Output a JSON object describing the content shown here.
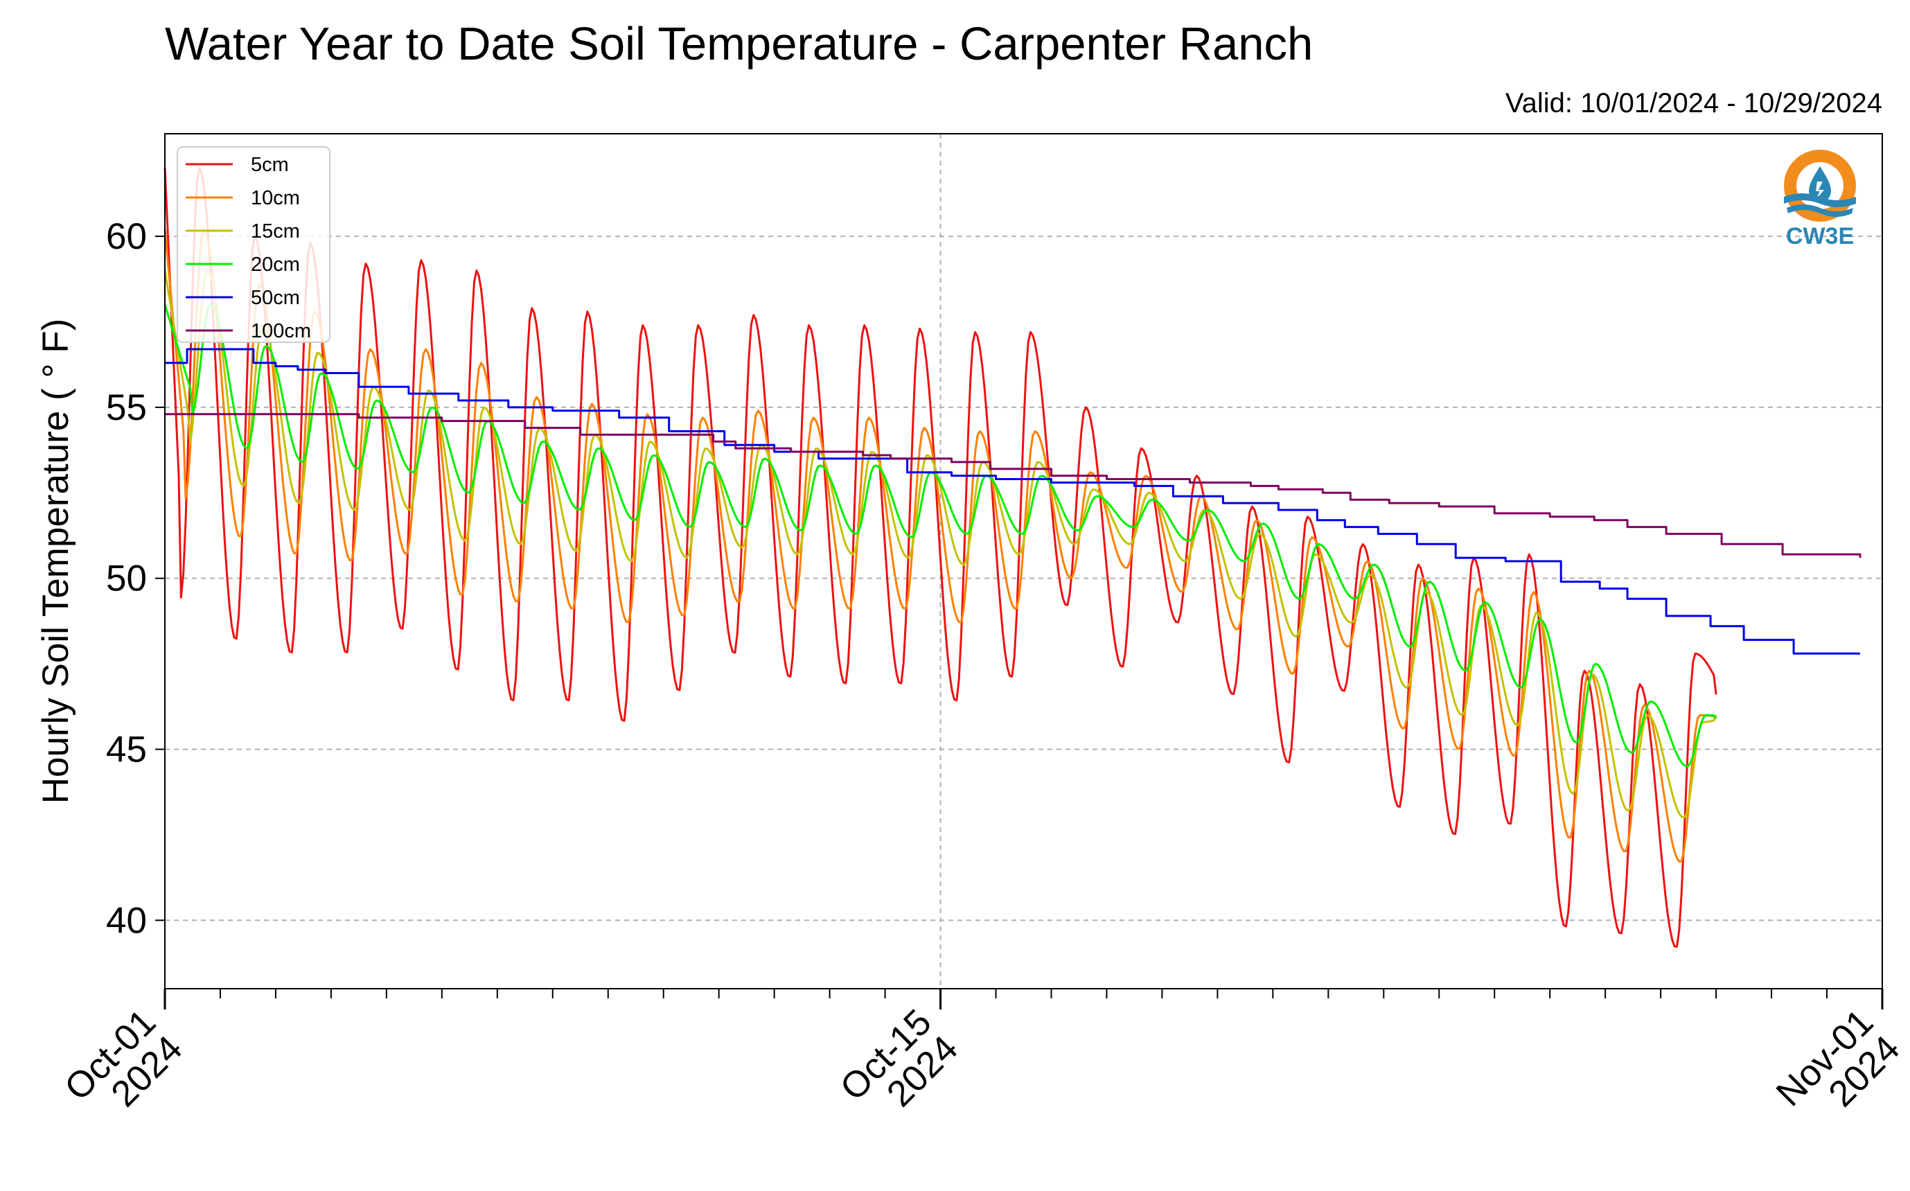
{
  "chart_data": {
    "type": "line",
    "title": "Water Year to Date Soil Temperature - Carpenter Ranch",
    "subtitle": "Valid: 10/01/2024 - 10/29/2024",
    "ylabel": "Hourly Soil Temperature ( ° F)",
    "xlabel": "",
    "ylim": [
      38,
      63
    ],
    "xlim": [
      "2024-10-01",
      "2024-11-01"
    ],
    "x_ticks": [
      {
        "date": "2024-10-01",
        "line1": "Oct-01",
        "line2": "2024"
      },
      {
        "date": "2024-10-15",
        "line1": "Oct-15",
        "line2": "2024"
      },
      {
        "date": "2024-11-01",
        "line1": "Nov-01",
        "line2": "2024"
      }
    ],
    "y_ticks": [
      40,
      45,
      50,
      55,
      60
    ],
    "grid": true,
    "legend_position": "top-left",
    "logo": {
      "text": "CW3E",
      "position": "top-right"
    },
    "daily_dates": [
      "2024-10-01",
      "2024-10-02",
      "2024-10-03",
      "2024-10-04",
      "2024-10-05",
      "2024-10-06",
      "2024-10-07",
      "2024-10-08",
      "2024-10-09",
      "2024-10-10",
      "2024-10-11",
      "2024-10-12",
      "2024-10-13",
      "2024-10-14",
      "2024-10-15",
      "2024-10-16",
      "2024-10-17",
      "2024-10-18",
      "2024-10-19",
      "2024-10-20",
      "2024-10-21",
      "2024-10-22",
      "2024-10-23",
      "2024-10-24",
      "2024-10-25",
      "2024-10-26",
      "2024-10-27",
      "2024-10-28"
    ],
    "series": [
      {
        "name": "5cm",
        "color": "#ee1111",
        "phase": 0.0,
        "daily_max": [
          62.0,
          60.0,
          59.8,
          59.2,
          59.3,
          59.0,
          57.9,
          57.8,
          57.4,
          57.4,
          57.7,
          57.4,
          57.4,
          57.3,
          57.2,
          57.2,
          55.0,
          53.8,
          53.0,
          52.1,
          51.8,
          51.0,
          50.4,
          50.6,
          50.7,
          47.3,
          46.9,
          47.8
        ],
        "daily_min": [
          49.4,
          48.2,
          47.8,
          47.8,
          48.5,
          47.3,
          46.4,
          46.4,
          45.8,
          46.7,
          47.8,
          47.1,
          46.9,
          46.9,
          46.4,
          47.1,
          49.2,
          47.4,
          48.7,
          46.6,
          44.6,
          46.7,
          43.3,
          42.5,
          42.8,
          39.8,
          39.6,
          39.2
        ],
        "end_value": 46.6
      },
      {
        "name": "10cm",
        "color": "#ff8000",
        "phase": 0.08,
        "daily_max": [
          60.2,
          58.6,
          57.8,
          56.7,
          56.7,
          56.3,
          55.3,
          55.1,
          54.8,
          54.7,
          54.9,
          54.7,
          54.7,
          54.4,
          54.3,
          54.3,
          53.1,
          53.0,
          52.4,
          51.7,
          51.2,
          50.5,
          50.0,
          49.7,
          49.6,
          47.3,
          46.3,
          46.0
        ],
        "daily_min": [
          52.3,
          51.2,
          50.7,
          50.5,
          50.7,
          49.5,
          49.3,
          49.1,
          48.7,
          48.9,
          49.3,
          49.1,
          49.1,
          49.1,
          48.7,
          49.1,
          50.0,
          50.3,
          49.6,
          48.5,
          47.2,
          48.0,
          45.6,
          45.0,
          44.8,
          42.4,
          42.0,
          41.7
        ],
        "end_value": 45.9
      },
      {
        "name": "15cm",
        "color": "#c2c200",
        "phase": 0.14,
        "daily_max": [
          59.0,
          57.4,
          56.6,
          55.6,
          55.5,
          55.0,
          54.4,
          54.2,
          54.0,
          53.8,
          53.9,
          53.8,
          53.7,
          53.6,
          53.4,
          53.4,
          52.6,
          52.5,
          52.0,
          51.3,
          50.7,
          50.1,
          49.6,
          49.2,
          49.0,
          47.2,
          46.0,
          45.8
        ],
        "daily_min": [
          53.8,
          52.7,
          52.2,
          52.0,
          52.0,
          51.1,
          51.0,
          50.8,
          50.5,
          50.6,
          50.9,
          50.7,
          50.7,
          50.6,
          50.4,
          50.7,
          51.0,
          51.0,
          50.5,
          49.4,
          48.3,
          48.7,
          46.8,
          46.0,
          45.7,
          43.7,
          43.2,
          43.0
        ],
        "end_value": 46.0
      },
      {
        "name": "20cm",
        "color": "#00ee00",
        "phase": 0.2,
        "daily_max": [
          58.0,
          56.8,
          56.0,
          55.2,
          55.0,
          54.6,
          54.0,
          53.8,
          53.6,
          53.4,
          53.5,
          53.3,
          53.3,
          53.1,
          53.0,
          53.0,
          52.4,
          52.3,
          52.0,
          51.6,
          51.0,
          50.4,
          49.9,
          49.3,
          48.8,
          47.5,
          46.4,
          46.0
        ],
        "daily_min": [
          54.8,
          53.8,
          53.4,
          53.2,
          53.1,
          52.5,
          52.2,
          52.0,
          51.7,
          51.5,
          51.5,
          51.4,
          51.3,
          51.2,
          51.3,
          51.3,
          51.4,
          51.5,
          51.1,
          50.5,
          49.4,
          49.4,
          48.0,
          47.3,
          46.8,
          45.2,
          44.9,
          44.5
        ],
        "end_value": 45.9
      },
      {
        "name": "50cm",
        "color": "#0000ee",
        "steps": [
          [
            0.0,
            56.3
          ],
          [
            0.4,
            56.7
          ],
          [
            1.6,
            56.3
          ],
          [
            2.0,
            56.2
          ],
          [
            2.4,
            56.1
          ],
          [
            2.9,
            56.0
          ],
          [
            3.5,
            55.6
          ],
          [
            4.4,
            55.4
          ],
          [
            5.3,
            55.2
          ],
          [
            6.2,
            55.0
          ],
          [
            7.0,
            54.9
          ],
          [
            8.2,
            54.7
          ],
          [
            9.1,
            54.3
          ],
          [
            10.1,
            53.9
          ],
          [
            11.0,
            53.7
          ],
          [
            11.8,
            53.5
          ],
          [
            12.8,
            53.5
          ],
          [
            13.4,
            53.1
          ],
          [
            14.2,
            53.0
          ],
          [
            15.0,
            52.9
          ],
          [
            16.0,
            52.8
          ],
          [
            17.5,
            52.7
          ],
          [
            18.2,
            52.4
          ],
          [
            19.1,
            52.2
          ],
          [
            20.1,
            52.0
          ],
          [
            20.8,
            51.7
          ],
          [
            21.3,
            51.5
          ],
          [
            21.9,
            51.3
          ],
          [
            22.6,
            51.0
          ],
          [
            23.3,
            50.6
          ],
          [
            24.2,
            50.5
          ],
          [
            25.2,
            49.9
          ],
          [
            25.9,
            49.7
          ],
          [
            26.4,
            49.4
          ],
          [
            27.1,
            48.9
          ],
          [
            27.9,
            48.6
          ],
          [
            28.5,
            48.2
          ],
          [
            29.4,
            47.8
          ],
          [
            30.6,
            47.8
          ]
        ]
      },
      {
        "name": "100cm",
        "color": "#800060",
        "steps": [
          [
            0.0,
            54.8
          ],
          [
            2.6,
            54.8
          ],
          [
            3.5,
            54.7
          ],
          [
            5.0,
            54.6
          ],
          [
            6.5,
            54.4
          ],
          [
            7.5,
            54.2
          ],
          [
            8.5,
            54.2
          ],
          [
            9.9,
            54.0
          ],
          [
            10.3,
            53.8
          ],
          [
            11.3,
            53.7
          ],
          [
            12.6,
            53.6
          ],
          [
            13.1,
            53.5
          ],
          [
            14.2,
            53.4
          ],
          [
            14.9,
            53.2
          ],
          [
            16.0,
            53.0
          ],
          [
            17.0,
            52.9
          ],
          [
            18.5,
            52.8
          ],
          [
            19.1,
            52.8
          ],
          [
            19.6,
            52.7
          ],
          [
            20.1,
            52.6
          ],
          [
            20.9,
            52.5
          ],
          [
            21.4,
            52.3
          ],
          [
            22.1,
            52.2
          ],
          [
            23.0,
            52.1
          ],
          [
            24.0,
            51.9
          ],
          [
            25.0,
            51.8
          ],
          [
            25.8,
            51.7
          ],
          [
            26.4,
            51.5
          ],
          [
            27.1,
            51.3
          ],
          [
            28.1,
            51.0
          ],
          [
            29.2,
            50.7
          ],
          [
            30.3,
            50.7
          ],
          [
            30.6,
            50.6
          ]
        ]
      }
    ]
  }
}
